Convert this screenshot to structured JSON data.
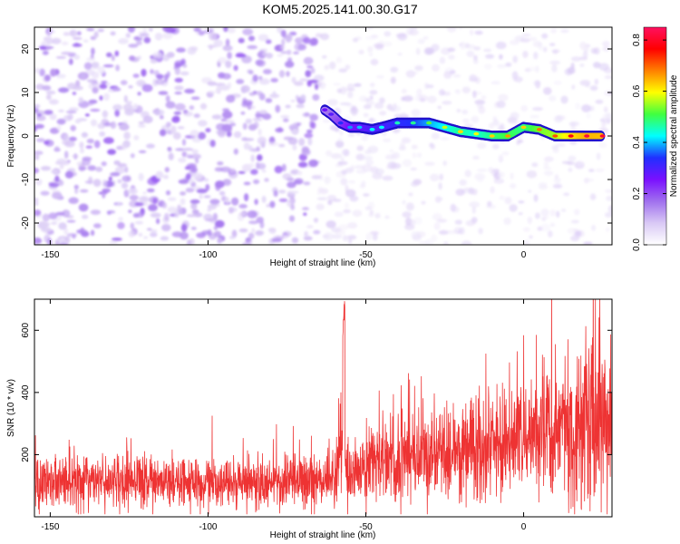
{
  "title": "KOM5.2025.141.00.30.G17",
  "colors": {
    "snr_line": "#ee3333",
    "axis": "#000000",
    "colormap": [
      "#ffffff",
      "#d9c9f5",
      "#a070ee",
      "#7a10ff",
      "#2030ff",
      "#00ffff",
      "#40ff40",
      "#ffff00",
      "#ff8000",
      "#ff0000",
      "#ff1060"
    ]
  },
  "chart_data": [
    {
      "type": "heatmap",
      "description_of_ridge": "narrow high-amplitude Doppler ridge near 0 Hz starting at about -63 km",
      "xlabel": "Height of straight line (km)",
      "ylabel": "Frequency (Hz)",
      "xlim": [
        -155,
        28
      ],
      "ylim": [
        -25,
        25
      ],
      "xticks": [
        -150,
        -100,
        -50,
        0
      ],
      "yticks": [
        -20,
        -10,
        0,
        10,
        20
      ],
      "xtick_labels": [
        "-150",
        "-100",
        "-50",
        "0"
      ],
      "ytick_labels": [
        "-20",
        "-10",
        "0",
        "10",
        "20"
      ],
      "ridge": {
        "x": [
          -63,
          -61,
          -58,
          -55,
          -52,
          -48,
          -45,
          -40,
          -35,
          -30,
          -25,
          -20,
          -15,
          -10,
          -5,
          0,
          5,
          10,
          15,
          20,
          25
        ],
        "y": [
          6,
          5,
          3,
          2,
          2,
          1.5,
          2,
          3,
          3,
          3,
          2,
          1,
          0.5,
          0,
          0,
          2,
          1.5,
          0,
          0,
          0,
          0
        ],
        "amplitude": [
          0.28,
          0.3,
          0.35,
          0.4,
          0.42,
          0.45,
          0.45,
          0.48,
          0.5,
          0.55,
          0.6,
          0.65,
          0.62,
          0.66,
          0.7,
          0.66,
          0.72,
          0.75,
          0.82,
          0.86,
          0.85
        ]
      },
      "colorbar": {
        "label": "Normalized spectral amplitude",
        "range": [
          0.0,
          0.85
        ],
        "ticks": [
          0.0,
          0.2,
          0.4,
          0.6,
          0.8
        ],
        "tick_labels": [
          "0.0",
          "0.2",
          "0.4",
          "0.6",
          "0.8"
        ]
      },
      "grid": false
    },
    {
      "type": "line",
      "xlabel": "Height of straight line (km)",
      "ylabel": "SNR (10 * v/v)",
      "xlim": [
        -155,
        28
      ],
      "ylim": [
        0,
        700
      ],
      "xticks": [
        -150,
        -100,
        -50,
        0
      ],
      "yticks": [
        200,
        400,
        600
      ],
      "xtick_labels": [
        "-150",
        "-100",
        "-50",
        "0"
      ],
      "ytick_labels": [
        "200",
        "400",
        "600"
      ],
      "grid": false,
      "series": [
        {
          "trend": {
            "x": [
              -155,
              -140,
              -120,
              -100,
              -80,
              -70,
              -65,
              -60,
              -58,
              -57,
              -55,
              -50,
              -40,
              -30,
              -20,
              -10,
              0,
              5,
              10,
              15,
              20,
              25,
              28
            ],
            "y": [
              110,
              115,
              115,
              110,
              110,
              115,
              115,
              125,
              300,
              140,
              130,
              160,
              185,
              200,
              215,
              235,
              255,
              275,
              290,
              300,
              310,
              320,
              330
            ]
          },
          "peak": {
            "x": -57,
            "y": 700
          }
        }
      ]
    }
  ]
}
